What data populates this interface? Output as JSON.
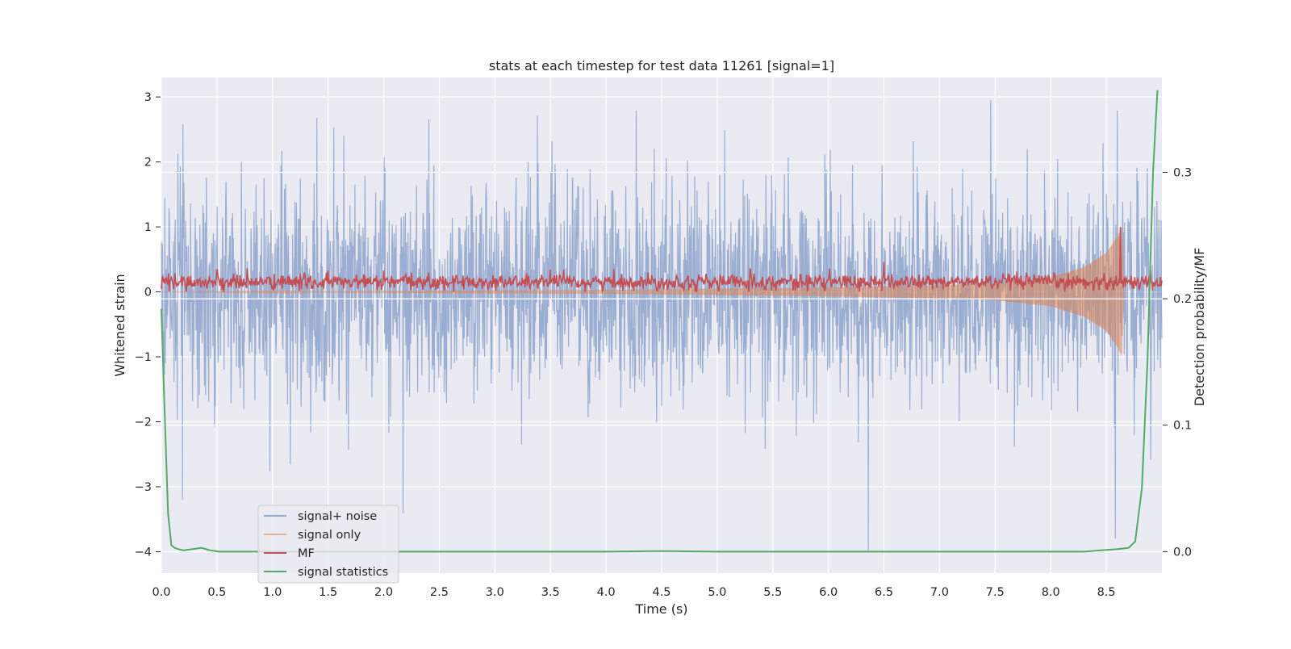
{
  "chart_data": {
    "type": "line",
    "title": "stats at each timestep for test data 11261 [signal=1]",
    "xlabel": "Time (s)",
    "ylabel": "Whitened strain",
    "y2label": "Detection probability/MF",
    "xlim": [
      0.0,
      9.0
    ],
    "ylim": [
      -4.33,
      3.3
    ],
    "y2lim": [
      -0.017,
      0.375
    ],
    "x_ticks": [
      "0.0",
      "0.5",
      "1.0",
      "1.5",
      "2.0",
      "2.5",
      "3.0",
      "3.5",
      "4.0",
      "4.5",
      "5.0",
      "5.5",
      "6.0",
      "6.5",
      "7.0",
      "7.5",
      "8.0",
      "8.5"
    ],
    "y_ticks": [
      "3",
      "2",
      "1",
      "0",
      "−1",
      "−2",
      "−3",
      "−4"
    ],
    "y2_ticks": [
      "0.3",
      "0.2",
      "0.1",
      "0.0"
    ],
    "grid": true,
    "legend_position": "lower-left",
    "colors": {
      "background": "#eaeaf2",
      "signal_noise": "#4c72b0",
      "signal_only": "#dd8452",
      "mf": "#c44e52",
      "signal_statistics": "#55a868"
    },
    "series": [
      {
        "name": "signal+ noise",
        "axis": "left",
        "style": "dense noisy strain, roughly symmetric, amplitude envelope about ±1.5 with spikes",
        "notable_peaks": [
          {
            "x": 0.15,
            "y": 2.13
          },
          {
            "x": 0.19,
            "y": -3.2
          },
          {
            "x": 1.4,
            "y": 2.68
          },
          {
            "x": 4.27,
            "y": 2.79
          },
          {
            "x": 6.36,
            "y": -4.0
          },
          {
            "x": 7.46,
            "y": 2.95
          },
          {
            "x": 8.6,
            "y": 2.79
          },
          {
            "x": 8.58,
            "y": -3.8
          }
        ]
      },
      {
        "name": "signal only",
        "axis": "left",
        "style": "chirp with growing envelope before merger",
        "envelope": [
          {
            "x": 0.0,
            "y": 0.0
          },
          {
            "x": 4.0,
            "y": 0.03
          },
          {
            "x": 6.0,
            "y": 0.07
          },
          {
            "x": 7.0,
            "y": 0.1
          },
          {
            "x": 7.5,
            "y": 0.13
          },
          {
            "x": 8.0,
            "y": 0.22
          },
          {
            "x": 8.3,
            "y": 0.38
          },
          {
            "x": 8.5,
            "y": 0.6
          },
          {
            "x": 8.6,
            "y": 0.85
          },
          {
            "x": 8.64,
            "y": 1.0
          },
          {
            "x": 8.66,
            "y": 0.0
          }
        ]
      },
      {
        "name": "MF",
        "axis": "left",
        "style": "noisy matched-filter output, baseline about 0.15",
        "baseline": 0.15,
        "peaks": [
          {
            "x": 0.5,
            "y": 0.35
          },
          {
            "x": 1.5,
            "y": 0.33
          },
          {
            "x": 2.0,
            "y": 0.33
          },
          {
            "x": 3.5,
            "y": 0.35
          },
          {
            "x": 5.3,
            "y": 0.36
          },
          {
            "x": 6.5,
            "y": 0.46
          },
          {
            "x": 8.63,
            "y": 1.0
          }
        ]
      },
      {
        "name": "signal statistics",
        "axis": "right",
        "x": [
          0.0,
          0.03,
          0.06,
          0.09,
          0.12,
          0.15,
          0.2,
          0.28,
          0.36,
          0.44,
          0.52,
          0.7,
          1.0,
          2.0,
          3.0,
          4.0,
          4.5,
          5.0,
          6.0,
          7.0,
          8.0,
          8.3,
          8.45,
          8.6,
          8.7,
          8.76,
          8.82,
          8.87,
          8.92,
          8.96
        ],
        "y": [
          0.192,
          0.11,
          0.03,
          0.005,
          0.003,
          0.002,
          0.001,
          0.002,
          0.003,
          0.001,
          0.0,
          0.0,
          0.0,
          0.0,
          0.0,
          0.0,
          0.0005,
          0.0,
          0.0,
          0.0,
          0.0,
          0.0,
          0.001,
          0.002,
          0.003,
          0.008,
          0.05,
          0.15,
          0.3,
          0.365
        ]
      }
    ],
    "legend": [
      "signal+ noise",
      "signal only",
      "MF",
      "signal statistics"
    ]
  }
}
